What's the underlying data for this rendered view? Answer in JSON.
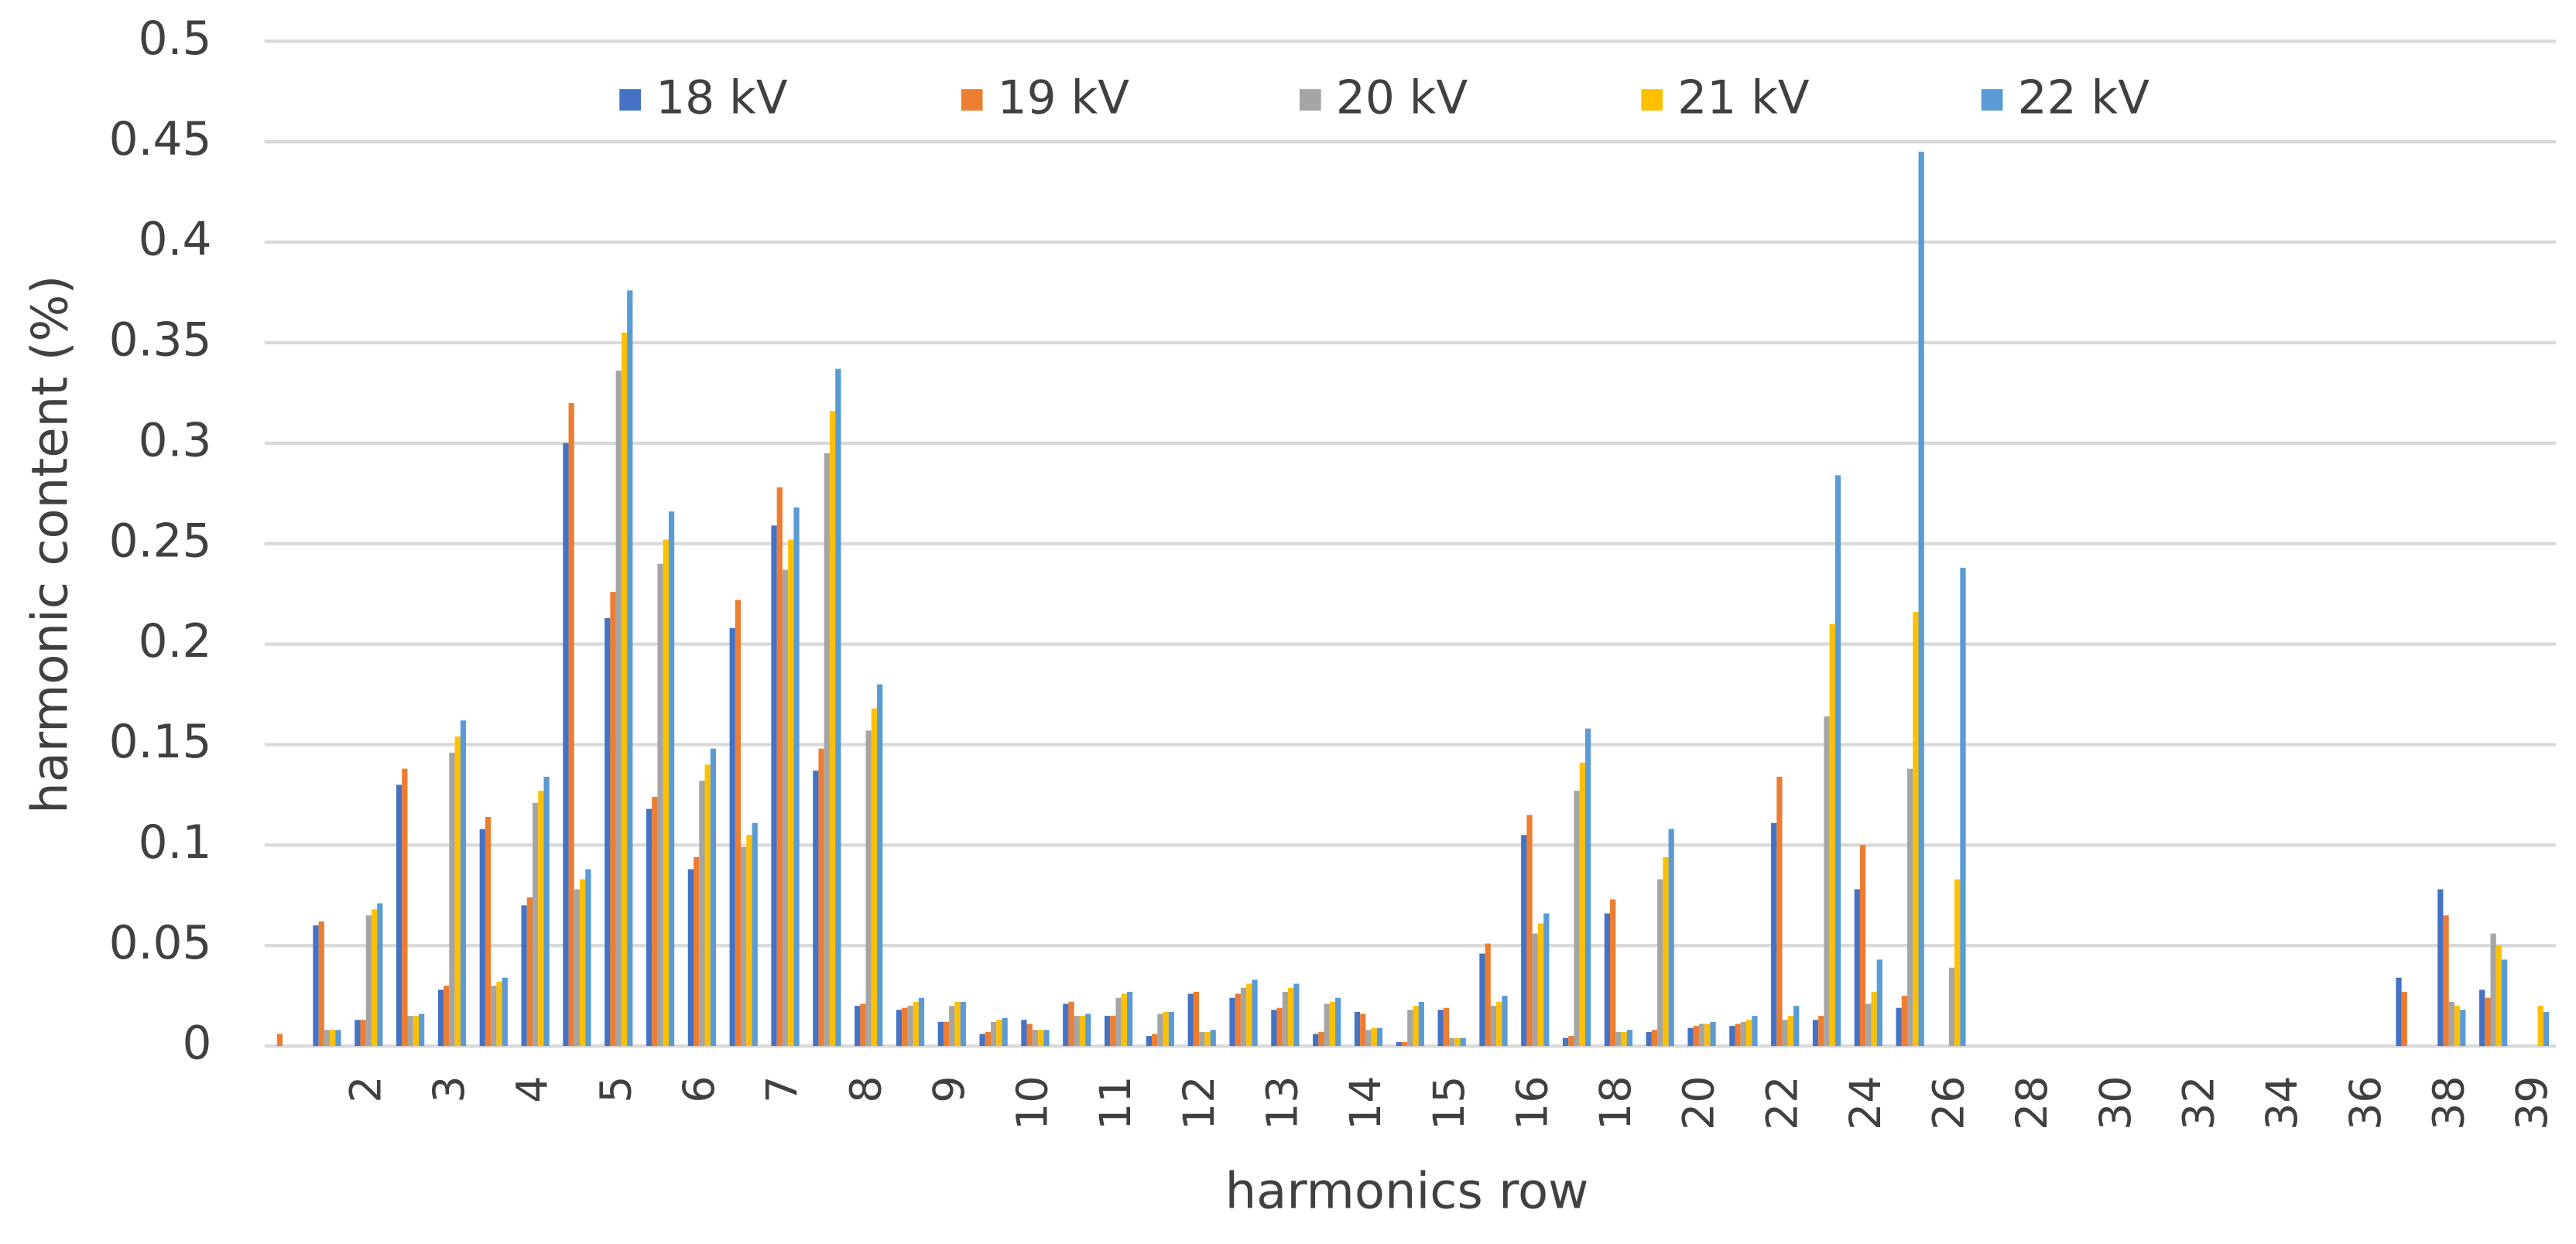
{
  "chart_data": {
    "type": "bar",
    "xlabel": "harmonics row",
    "ylabel": "harmonic content (%)",
    "categories": [
      null,
      null,
      "2",
      null,
      "3",
      null,
      "4",
      null,
      "5",
      null,
      "6",
      null,
      "7",
      null,
      "8",
      null,
      "9",
      null,
      "10",
      null,
      "11",
      null,
      "12",
      null,
      "13",
      null,
      "14",
      null,
      "15",
      null,
      "16",
      null,
      "18",
      null,
      "20",
      null,
      "22",
      null,
      "24",
      null,
      "26",
      null,
      "28",
      null,
      "30",
      null,
      "32",
      null,
      "34",
      null,
      "36",
      null,
      "38",
      null,
      "39"
    ],
    "series": [
      {
        "name": "18 kV",
        "color": "#4472c4",
        "values": [
          0,
          0.06,
          0.013,
          0.13,
          0.028,
          0.108,
          0.07,
          0.3,
          0.213,
          0.118,
          0.088,
          0.208,
          0.259,
          0.137,
          0.02,
          0.018,
          0.012,
          0.006,
          0.013,
          0.021,
          0.015,
          0.005,
          0.026,
          0.024,
          0.018,
          0.006,
          0.017,
          0.002,
          0.018,
          0.046,
          0.105,
          0.004,
          0.066,
          0.007,
          0.009,
          0.01,
          0.111,
          0.013,
          0.078,
          0.019,
          0,
          0,
          0,
          0,
          0,
          0,
          0,
          0,
          0,
          0,
          0,
          0.034,
          0.078,
          0.028,
          0
        ]
      },
      {
        "name": "19 kV",
        "color": "#ed7d31",
        "values": [
          0.006,
          0.062,
          0.013,
          0.138,
          0.03,
          0.114,
          0.074,
          0.32,
          0.226,
          0.124,
          0.094,
          0.222,
          0.278,
          0.148,
          0.021,
          0.019,
          0.012,
          0.007,
          0.011,
          0.022,
          0.015,
          0.006,
          0.027,
          0.026,
          0.019,
          0.007,
          0.016,
          0.002,
          0.019,
          0.051,
          0.115,
          0.005,
          0.073,
          0.008,
          0.01,
          0.011,
          0.134,
          0.015,
          0.1,
          0.025,
          0,
          0,
          0,
          0,
          0,
          0,
          0,
          0,
          0,
          0,
          0,
          0.027,
          0.065,
          0.024,
          0
        ]
      },
      {
        "name": "20 kV",
        "color": "#a5a5a5",
        "values": [
          0,
          0.008,
          0.065,
          0.015,
          0.146,
          0.03,
          0.121,
          0.078,
          0.336,
          0.24,
          0.132,
          0.099,
          0.237,
          0.295,
          0.157,
          0.02,
          0.02,
          0.012,
          0.008,
          0.015,
          0.024,
          0.016,
          0.007,
          0.029,
          0.027,
          0.021,
          0.008,
          0.018,
          0.004,
          0.02,
          0.056,
          0.127,
          0.007,
          0.083,
          0.011,
          0.012,
          0.013,
          0.164,
          0.021,
          0.138,
          0.039,
          0,
          0,
          0,
          0,
          0,
          0,
          0,
          0,
          0,
          0,
          0,
          0.022,
          0.056,
          0
        ]
      },
      {
        "name": "21 kV",
        "color": "#ffc000",
        "values": [
          0,
          0.008,
          0.068,
          0.015,
          0.154,
          0.032,
          0.127,
          0.083,
          0.355,
          0.252,
          0.14,
          0.105,
          0.252,
          0.316,
          0.168,
          0.022,
          0.022,
          0.013,
          0.008,
          0.015,
          0.026,
          0.017,
          0.007,
          0.031,
          0.029,
          0.022,
          0.009,
          0.02,
          0.004,
          0.022,
          0.061,
          0.141,
          0.007,
          0.094,
          0.011,
          0.013,
          0.015,
          0.21,
          0.027,
          0.216,
          0.083,
          0,
          0,
          0,
          0,
          0,
          0,
          0,
          0,
          0,
          0,
          0,
          0.02,
          0.05,
          0.02
        ]
      },
      {
        "name": "22 kV",
        "color": "#5b9bd5",
        "values": [
          0,
          0.008,
          0.071,
          0.016,
          0.162,
          0.034,
          0.134,
          0.088,
          0.376,
          0.266,
          0.148,
          0.111,
          0.268,
          0.337,
          0.18,
          0.024,
          0.022,
          0.014,
          0.008,
          0.016,
          0.027,
          0.017,
          0.008,
          0.033,
          0.031,
          0.024,
          0.009,
          0.022,
          0.004,
          0.025,
          0.066,
          0.158,
          0.008,
          0.108,
          0.012,
          0.015,
          0.02,
          0.284,
          0.043,
          0.445,
          0.238,
          0,
          0,
          0,
          0,
          0,
          0,
          0,
          0,
          0,
          0,
          0,
          0.018,
          0.043,
          0.017
        ]
      }
    ],
    "ylim": [
      0,
      0.5
    ],
    "yticks": [
      0,
      0.05,
      0.1,
      0.15,
      0.2,
      0.25,
      0.3,
      0.35,
      0.4,
      0.45,
      0.5
    ],
    "grid": true,
    "legend": "top"
  }
}
